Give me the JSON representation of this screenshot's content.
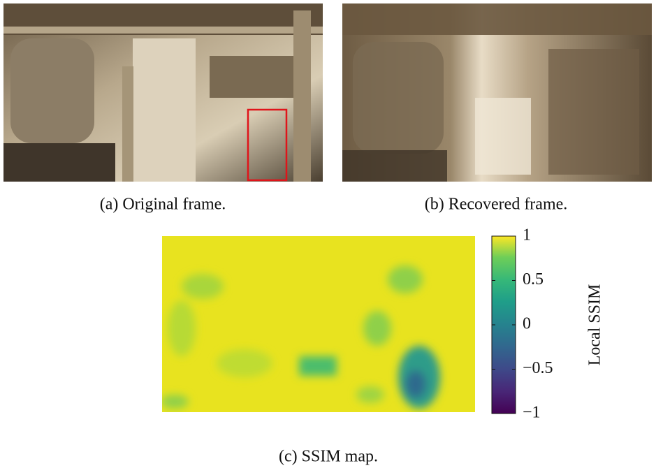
{
  "panels": [
    {
      "caption": "(a) Original frame."
    },
    {
      "caption": "(b) Recovered frame."
    },
    {
      "caption": "(c) SSIM map."
    }
  ],
  "colorbar": {
    "label": "Local SSIM",
    "lim": [
      -1,
      1
    ],
    "ticks": [
      {
        "value": -1,
        "label": "−1"
      },
      {
        "value": -0.5,
        "label": "−0.5"
      },
      0,
      0.5,
      1
    ]
  }
}
